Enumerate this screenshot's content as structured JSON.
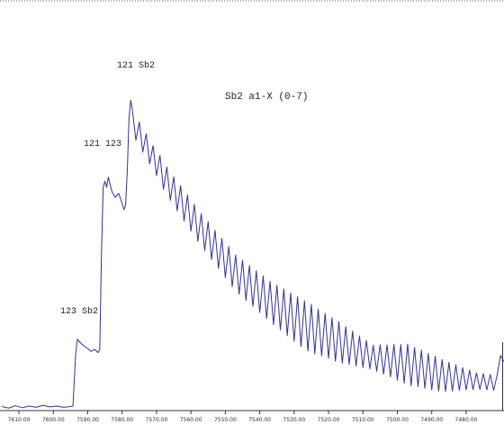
{
  "chart_data": {
    "type": "line",
    "title": "Sb2 a1-X (0-7)",
    "annotations": [
      "121 Sb2",
      "121 123",
      "123 Sb2"
    ],
    "xlim": [
      7615.5,
      7469
    ],
    "ylim": [
      0,
      100
    ],
    "xticks": [
      {
        "value": 7610,
        "label": "7610.00"
      },
      {
        "value": 7600,
        "label": "7600.00"
      },
      {
        "value": 7590,
        "label": "7590.00"
      },
      {
        "value": 7580,
        "label": "7580.00"
      },
      {
        "value": 7570,
        "label": "7570.00"
      },
      {
        "value": 7560,
        "label": "7560.00"
      },
      {
        "value": 7550,
        "label": "7550.00"
      },
      {
        "value": 7540,
        "label": "7540.00"
      },
      {
        "value": 7530,
        "label": "7530.00"
      },
      {
        "value": 7520,
        "label": "7520.00"
      },
      {
        "value": 7510,
        "label": "7510.00"
      },
      {
        "value": 7500,
        "label": "7500.00"
      },
      {
        "value": 7490,
        "label": "7490.00"
      },
      {
        "value": 7480,
        "label": "7480.00"
      }
    ],
    "x": [
      7615,
      7613,
      7611,
      7609,
      7607,
      7605,
      7603,
      7601,
      7599,
      7597,
      7595,
      7594.3,
      7593.5,
      7593,
      7592,
      7591,
      7590,
      7589,
      7588,
      7587,
      7586.5,
      7586,
      7585.5,
      7585,
      7584.5,
      7584,
      7583,
      7582,
      7581,
      7580,
      7579.5,
      7579,
      7578.5,
      7578,
      7577.5,
      7577,
      7576,
      7575,
      7574,
      7573,
      7572,
      7571,
      7570,
      7569,
      7568,
      7567,
      7566,
      7565,
      7564,
      7563,
      7562,
      7561,
      7560,
      7559,
      7558,
      7557,
      7556,
      7555,
      7554,
      7553,
      7552,
      7551,
      7550,
      7549,
      7548,
      7547,
      7546,
      7545,
      7544,
      7543,
      7542,
      7541,
      7540,
      7539,
      7538,
      7537,
      7536,
      7535,
      7534,
      7533,
      7532,
      7531,
      7530,
      7529,
      7528,
      7527,
      7526,
      7525,
      7524,
      7523,
      7522,
      7521,
      7520,
      7519,
      7518,
      7517,
      7516,
      7515,
      7514,
      7513,
      7512,
      7511,
      7510,
      7509,
      7508,
      7507,
      7506,
      7505,
      7504,
      7503,
      7502,
      7501,
      7500,
      7499,
      7498,
      7497,
      7496,
      7495,
      7494,
      7493,
      7492,
      7491,
      7490,
      7489,
      7488,
      7487,
      7486,
      7485,
      7484,
      7483,
      7482,
      7481,
      7480,
      7479,
      7478,
      7477,
      7476,
      7475,
      7474,
      7473,
      7472,
      7471,
      7470,
      7469
    ],
    "series": [
      {
        "color": "#34348f",
        "values": [
          1.9,
          1.5,
          2.1,
          1.6,
          2.0,
          1.7,
          2.2,
          1.8,
          2.0,
          1.7,
          1.9,
          2.0,
          15.0,
          18.5,
          17.5,
          16.8,
          16.2,
          15.5,
          16.0,
          15.2,
          16.0,
          40,
          56,
          57.5,
          56,
          58.5,
          55,
          53.5,
          54.5,
          52,
          50.5,
          51.5,
          60,
          73,
          77.5,
          75.0,
          67.6,
          72.1,
          64.7,
          69.2,
          61.8,
          66.3,
          58.9,
          63.9,
          55.5,
          61.0,
          52.8,
          58.6,
          50.2,
          56.4,
          47.7,
          54.1,
          45.2,
          51.8,
          42.7,
          49.5,
          40.4,
          47.5,
          38.2,
          45.4,
          36.0,
          43.4,
          33.7,
          41.4,
          31.5,
          39.3,
          29.6,
          38.0,
          28.1,
          36.7,
          26.6,
          35.4,
          25.1,
          34.1,
          23.6,
          32.8,
          22.1,
          31.8,
          20.8,
          30.9,
          19.4,
          29.9,
          18.0,
          29.0,
          16.7,
          28.0,
          15.6,
          27.1,
          14.9,
          25.9,
          14.4,
          24.9,
          13.8,
          23.8,
          13.1,
          22.8,
          12.6,
          21.6,
          12.3,
          20.5,
          11.9,
          19.3,
          11.5,
          18.2,
          11.2,
          17.0,
          10.6,
          17.1,
          9.9,
          17.1,
          9.2,
          17.2,
          8.4,
          17.2,
          7.7,
          17.3,
          7.0,
          16.5,
          6.8,
          15.8,
          6.4,
          15.0,
          6.0,
          14.3,
          5.7,
          13.5,
          5.6,
          12.8,
          5.7,
          12.2,
          5.9,
          11.5,
          6.0,
          10.9,
          6.1,
          10.2,
          6.1,
          10.0,
          6.0,
          9.8,
          5.9,
          9.6,
          14.5,
          13.0
        ]
      }
    ]
  }
}
